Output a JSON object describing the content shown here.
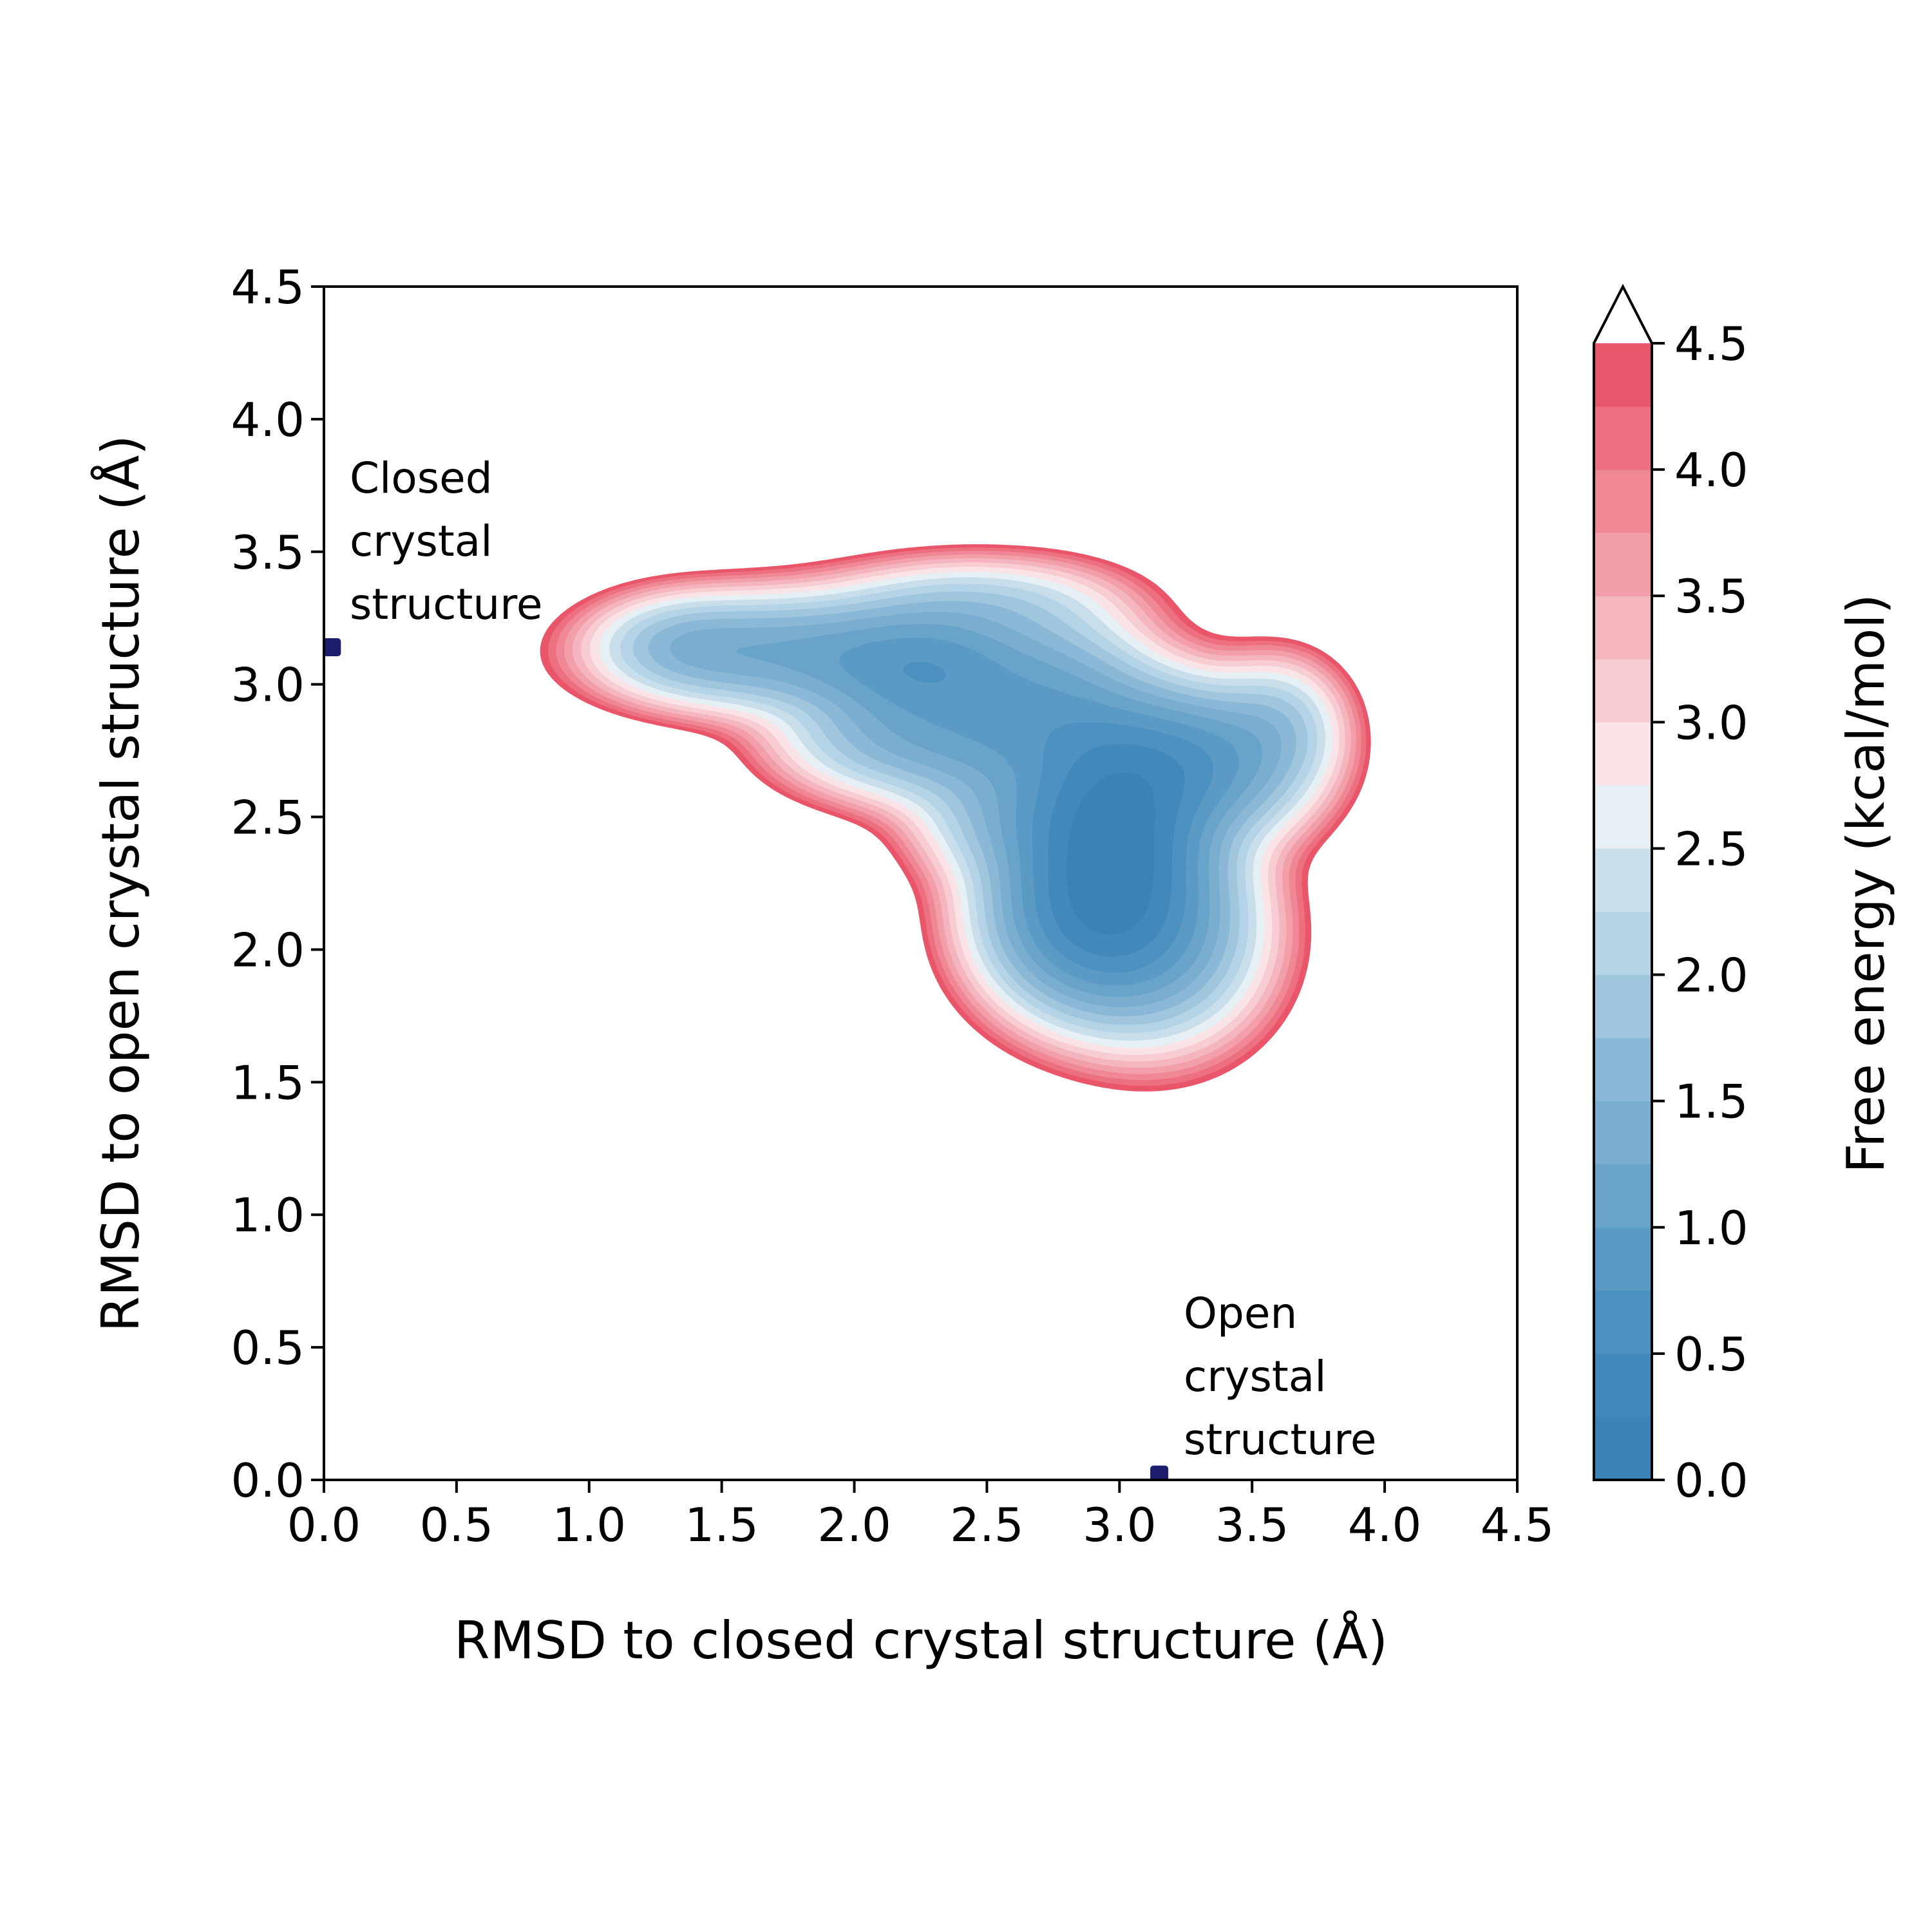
{
  "chart_data": {
    "type": "heatmap",
    "subtype": "filled-contour free energy landscape",
    "title": "",
    "xlabel": "RMSD to closed crystal structure (Å)",
    "ylabel": "RMSD to open crystal structure (Å)",
    "xlim": [
      0.0,
      4.5
    ],
    "ylim": [
      0.0,
      4.5
    ],
    "xticks": [
      "0.0",
      "0.5",
      "1.0",
      "1.5",
      "2.0",
      "2.5",
      "3.0",
      "3.5",
      "4.0",
      "4.5"
    ],
    "yticks": [
      "0.0",
      "0.5",
      "1.0",
      "1.5",
      "2.0",
      "2.5",
      "3.0",
      "3.5",
      "4.0",
      "4.5"
    ],
    "grid": false,
    "colorbar": {
      "label": "Free energy (kcal/mol)",
      "range": [
        0.0,
        4.5
      ],
      "ticks": [
        "0.0",
        "0.5",
        "1.0",
        "1.5",
        "2.0",
        "2.5",
        "3.0",
        "3.5",
        "4.0",
        "4.5"
      ],
      "extend": "max",
      "levels": [
        0.0,
        0.25,
        0.5,
        0.75,
        1.0,
        1.25,
        1.5,
        1.75,
        2.0,
        2.25,
        2.5,
        2.75,
        3.0,
        3.25,
        3.5,
        3.75,
        4.0,
        4.25,
        4.5
      ],
      "colors": [
        "#3a83b7",
        "#4189bb",
        "#4d91c0",
        "#5b9ac5",
        "#69a3ca",
        "#7aaed0",
        "#8bb8d6",
        "#a0c6de",
        "#b4d3e6",
        "#c9deeb",
        "#e6eff4",
        "#fae3e6",
        "#f7ccd2",
        "#f5b5be",
        "#f29fa9",
        "#ef8894",
        "#ec707f",
        "#e9566a",
        "#e62e47"
      ]
    },
    "minima": [
      {
        "x": 3.0,
        "y": 2.48,
        "free_energy": 0.0
      },
      {
        "x": 2.25,
        "y": 3.07,
        "free_energy": 1.2
      }
    ],
    "markers": [
      {
        "x": 0.03,
        "y": 3.14,
        "label": "Closed crystal structure",
        "color": "#1c1f6e"
      },
      {
        "x": 3.15,
        "y": 0.02,
        "label": "Open crystal structure",
        "color": "#1c1f6e"
      }
    ]
  },
  "annotations": {
    "closed_lines": [
      "Closed",
      "crystal",
      "structure"
    ],
    "open_lines": [
      "Open",
      "crystal",
      "structure"
    ]
  }
}
